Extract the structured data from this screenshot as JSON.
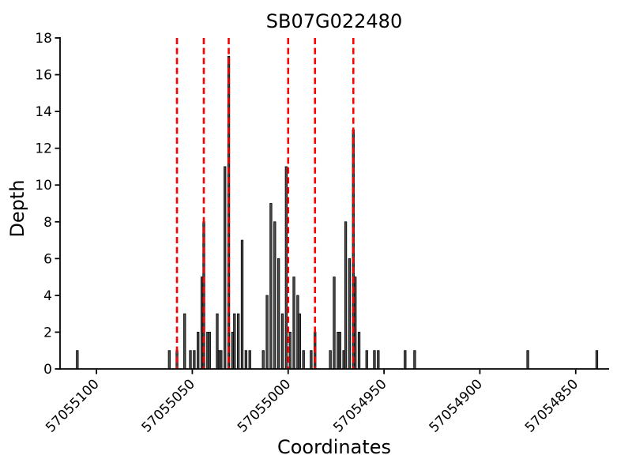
{
  "figure": {
    "background": "#ffffff"
  },
  "chart_data": {
    "type": "bar",
    "title": "SB07G022480",
    "xlabel": "Coordinates",
    "ylabel": "Depth",
    "x_descending": true,
    "xlim": [
      57055119,
      57054833
    ],
    "ylim": [
      0,
      18
    ],
    "x_tick_values": [
      57055100,
      57055050,
      57055000,
      57054950,
      57054900,
      57054850
    ],
    "x_tick_labels": [
      "57055100",
      "57055050",
      "57055000",
      "57054950",
      "57054900",
      "57054850"
    ],
    "y_tick_values": [
      0,
      2,
      4,
      6,
      8,
      10,
      12,
      14,
      16,
      18
    ],
    "y_tick_labels": [
      "0",
      "2",
      "4",
      "6",
      "8",
      "10",
      "12",
      "14",
      "16",
      "18"
    ],
    "grid": false,
    "legend": null,
    "bars_format": "[coordinate, depth]",
    "bars": [
      [
        57055110,
        1
      ],
      [
        57055062,
        1
      ],
      [
        57055058,
        1
      ],
      [
        57055054,
        3
      ],
      [
        57055051,
        1
      ],
      [
        57055049,
        1
      ],
      [
        57055047,
        2
      ],
      [
        57055045,
        5
      ],
      [
        57055044,
        8
      ],
      [
        57055042,
        2
      ],
      [
        57055041,
        2
      ],
      [
        57055037,
        3
      ],
      [
        57055036,
        1
      ],
      [
        57055035,
        1
      ],
      [
        57055033,
        11
      ],
      [
        57055031,
        17
      ],
      [
        57055029,
        2
      ],
      [
        57055028,
        3
      ],
      [
        57055026,
        3
      ],
      [
        57055024,
        7
      ],
      [
        57055022,
        1
      ],
      [
        57055020,
        1
      ],
      [
        57055013,
        1
      ],
      [
        57055011,
        4
      ],
      [
        57055009,
        9
      ],
      [
        57055007,
        8
      ],
      [
        57055005,
        6
      ],
      [
        57055003,
        3
      ],
      [
        57055001,
        11
      ],
      [
        57054999,
        2
      ],
      [
        57054997,
        5
      ],
      [
        57054995,
        4
      ],
      [
        57054994,
        3
      ],
      [
        57054992,
        1
      ],
      [
        57054988,
        1
      ],
      [
        57054986,
        2
      ],
      [
        57054978,
        1
      ],
      [
        57054976,
        5
      ],
      [
        57054974,
        2
      ],
      [
        57054973,
        2
      ],
      [
        57054971,
        1
      ],
      [
        57054970,
        8
      ],
      [
        57054968,
        6
      ],
      [
        57054966,
        13
      ],
      [
        57054965,
        5
      ],
      [
        57054963,
        2
      ],
      [
        57054959,
        1
      ],
      [
        57054955,
        1
      ],
      [
        57054953,
        1
      ],
      [
        57054939,
        1
      ],
      [
        57054934,
        1
      ],
      [
        57054875,
        1
      ],
      [
        57054839,
        1
      ]
    ],
    "snp_lines": [
      57055058,
      57055044,
      57055031,
      57055000,
      57054986,
      57054966
    ],
    "colors": {
      "bar_fill": "#4c4c4c",
      "bar_edge": "#000000",
      "snp_line": "#ff0000",
      "axis": "#000000",
      "text": "#000000"
    }
  }
}
